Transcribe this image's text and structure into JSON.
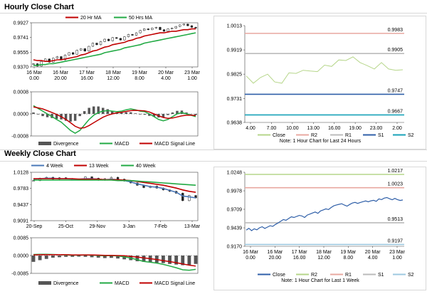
{
  "page": {
    "hourly_title": "Hourly Close Chart",
    "weekly_title": "Weekly Close Chart"
  },
  "chart_data": [
    {
      "id": "hourly_price",
      "type": "line",
      "subtype": "candlestick-with-moving-averages",
      "legend": [
        "20 Hr MA",
        "50 Hrs MA"
      ],
      "legend_colors": [
        "#c00000",
        "#22aa44"
      ],
      "ylim": [
        0.937,
        0.9927
      ],
      "yticks": [
        0.9927,
        0.9741,
        0.9555,
        0.937
      ],
      "ytick_labels": [
        "0.9927",
        "0.9741",
        "0.9555",
        "0.9370"
      ],
      "xtick_labels": [
        [
          "16 Mar",
          "0.00"
        ],
        [
          "16 Mar",
          "20.00"
        ],
        [
          "17 Mar",
          "16.00"
        ],
        [
          "18 Mar",
          "12.00"
        ],
        [
          "19 Mar",
          "8.00"
        ],
        [
          "20 Mar",
          "4.00"
        ],
        [
          "23 Mar",
          "1.00"
        ]
      ],
      "close": [
        0.941,
        0.938,
        0.944,
        0.947,
        0.943,
        0.948,
        0.95,
        0.946,
        0.952,
        0.955,
        0.953,
        0.958,
        0.96,
        0.957,
        0.963,
        0.967,
        0.965,
        0.969,
        0.972,
        0.97,
        0.974,
        0.973,
        0.971,
        0.975,
        0.978,
        0.977,
        0.98,
        0.983,
        0.985,
        0.984,
        0.986,
        0.987,
        0.984,
        0.982,
        0.985,
        0.986,
        0.988,
        0.99,
        0.991,
        0.989,
        0.987,
        0.986
      ],
      "ma20": [
        0.946,
        0.945,
        0.945,
        0.944,
        0.944,
        0.945,
        0.946,
        0.946,
        0.947,
        0.948,
        0.949,
        0.95,
        0.952,
        0.953,
        0.955,
        0.957,
        0.958,
        0.96,
        0.962,
        0.963,
        0.965,
        0.966,
        0.967,
        0.968,
        0.97,
        0.971,
        0.973,
        0.974,
        0.976,
        0.977,
        0.978,
        0.979,
        0.98,
        0.98,
        0.981,
        0.982,
        0.982,
        0.983,
        0.984,
        0.984,
        0.985,
        0.985
      ],
      "ma50": [
        0.939,
        0.939,
        0.94,
        0.94,
        0.941,
        0.941,
        0.942,
        0.943,
        0.944,
        0.945,
        0.946,
        0.947,
        0.948,
        0.949,
        0.95,
        0.951,
        0.952,
        0.953,
        0.955,
        0.956,
        0.957,
        0.958,
        0.959,
        0.961,
        0.962,
        0.963,
        0.964,
        0.965,
        0.967,
        0.968,
        0.969,
        0.97,
        0.971,
        0.972,
        0.973,
        0.974,
        0.975,
        0.976,
        0.977,
        0.978,
        0.979,
        0.98
      ]
    },
    {
      "id": "hourly_macd",
      "type": "bar",
      "subtype": "macd",
      "legend": [
        "Divergence",
        "MACD",
        "MACD Signal Line"
      ],
      "legend_colors": [
        "#555555",
        "#22aa44",
        "#c00000"
      ],
      "ylim": [
        -0.0008,
        0.0008
      ],
      "yticks": [
        0.0008,
        0.0,
        -0.0008
      ],
      "ytick_labels": [
        "0.0008",
        "0.0000",
        "-0.0008"
      ],
      "macd": [
        0.0003,
        0.0002,
        0.0001,
        0.0,
        -0.0001,
        -0.0002,
        -0.0003,
        -0.00045,
        -0.0006,
        -0.0007,
        -0.0006,
        -0.0004,
        -0.0002,
        -5e-05,
        5e-05,
        0.0001,
        0.00012,
        0.0001,
        8e-05,
        0.0001,
        0.00015,
        0.00018,
        0.00015,
        0.0001,
        8e-05,
        0.0,
        -0.0001,
        -0.0002,
        -0.00025,
        -0.0002,
        -0.0001,
        0.0,
        5e-05,
        0.0,
        -5e-05,
        -0.0001
      ],
      "signal": [
        0.00025,
        0.00022,
        0.00018,
        0.00012,
        5e-05,
        -2e-05,
        -0.0001,
        -0.0002,
        -0.00032,
        -0.00045,
        -0.00052,
        -0.0005,
        -0.00042,
        -0.00032,
        -0.00022,
        -0.00012,
        -5e-05,
        0.0,
        4e-05,
        6e-05,
        9e-05,
        0.00012,
        0.00013,
        0.00012,
        0.00011,
        7e-05,
        0.0,
        -7e-05,
        -0.00013,
        -0.00016,
        -0.00015,
        -0.00011,
        -7e-05,
        -5e-05,
        -5e-05,
        -6e-05
      ],
      "divergence": [
        5e-05,
        -2e-05,
        -8e-05,
        -0.00012,
        -0.00015,
        -0.00018,
        -0.0002,
        -0.00025,
        -0.00028,
        -0.00025,
        -8e-05,
        0.0001,
        0.00022,
        0.00027,
        0.00027,
        0.00022,
        0.00017,
        0.0001,
        4e-05,
        4e-05,
        6e-05,
        6e-05,
        2e-05,
        -2e-05,
        -3e-05,
        -7e-05,
        -0.0001,
        -0.00013,
        -0.00012,
        -4e-05,
        5e-05,
        0.00011,
        0.00012,
        5e-05,
        0.0,
        -4e-05
      ]
    },
    {
      "id": "hourly_sr",
      "type": "line",
      "subtype": "support-resistance",
      "ylim": [
        0.9638,
        1.0013
      ],
      "yticks": [
        1.0013,
        0.9919,
        0.9825,
        0.9731,
        0.9638
      ],
      "ytick_labels": [
        "1.0013",
        "0.9919",
        "0.9825",
        "0.9731",
        "0.9638"
      ],
      "xtick_labels": [
        "4.00",
        "7.00",
        "10.00",
        "13.00",
        "16.00",
        "19.00",
        "23.00",
        "2.00"
      ],
      "levels": [
        {
          "name": "R2",
          "value": 0.9983,
          "label": "0.9983",
          "color": "#e8a8a0"
        },
        {
          "name": "R1",
          "value": 0.9905,
          "label": "0.9905",
          "color": "#bbbbbb"
        },
        {
          "name": "S1",
          "value": 0.9747,
          "label": "0.9747",
          "color": "#2f5fa8"
        },
        {
          "name": "S2",
          "value": 0.9667,
          "label": "0.9667",
          "color": "#17a2b8"
        }
      ],
      "close": [
        0.9818,
        0.979,
        0.9812,
        0.9825,
        0.9795,
        0.979,
        0.983,
        0.9828,
        0.984,
        0.9837,
        0.9835,
        0.986,
        0.9855,
        0.988,
        0.9878,
        0.9892,
        0.987,
        0.9858,
        0.9845,
        0.987,
        0.9845,
        0.984,
        0.9842
      ],
      "legend": [
        "Close",
        "R2",
        "R1",
        "S1",
        "S2"
      ],
      "legend_colors": [
        "#b6d68a",
        "#e8a8a0",
        "#bbbbbb",
        "#2f5fa8",
        "#17a2b8"
      ],
      "note": "Note: 1 Hour Chart for Last 24 Hours"
    },
    {
      "id": "weekly_price",
      "type": "line",
      "subtype": "candlestick-with-moving-averages",
      "legend": [
        "4 Week",
        "13 Week",
        "40 Week"
      ],
      "legend_colors": [
        "#4a78b8",
        "#c00000",
        "#22aa44"
      ],
      "ylim": [
        0.9091,
        1.0128
      ],
      "yticks": [
        1.0128,
        0.9783,
        0.9437,
        0.9091
      ],
      "ytick_labels": [
        "1.0128",
        "0.9783",
        "0.9437",
        "0.9091"
      ],
      "xtick_labels": [
        "20-Sep",
        "25-Oct",
        "29-Nov",
        "3-Jan",
        "7-Feb",
        "13-Mar"
      ],
      "close": [
        0.995,
        1.0,
        1.002,
        0.998,
        1.001,
        0.999,
        0.997,
        0.998,
        1.003,
        1.0,
        0.996,
        0.999,
        1.002,
        0.998,
        0.994,
        0.99,
        0.985,
        0.98,
        0.983,
        0.979,
        0.975,
        0.972,
        0.968,
        0.952,
        0.963,
        0.958
      ],
      "ma4": [
        0.998,
        0.999,
        1.0,
        1.0,
        0.999,
        0.999,
        0.998,
        0.998,
        0.999,
        0.999,
        0.998,
        0.997,
        0.998,
        0.997,
        0.995,
        0.992,
        0.988,
        0.985,
        0.982,
        0.981,
        0.978,
        0.974,
        0.97,
        0.962,
        0.96,
        0.958
      ],
      "ma13": [
        0.999,
        0.999,
        0.999,
        0.999,
        0.999,
        0.999,
        0.999,
        0.998,
        0.998,
        0.998,
        0.998,
        0.997,
        0.997,
        0.997,
        0.996,
        0.995,
        0.993,
        0.991,
        0.989,
        0.987,
        0.985,
        0.982,
        0.979,
        0.975,
        0.972,
        0.97
      ],
      "ma40": [
        0.996,
        0.996,
        0.996,
        0.996,
        0.996,
        0.996,
        0.996,
        0.996,
        0.996,
        0.996,
        0.996,
        0.996,
        0.996,
        0.995,
        0.995,
        0.995,
        0.994,
        0.993,
        0.992,
        0.991,
        0.99,
        0.989,
        0.988,
        0.987,
        0.986,
        0.985
      ]
    },
    {
      "id": "weekly_macd",
      "type": "bar",
      "subtype": "macd",
      "legend": [
        "Divergence",
        "MACD",
        "MACD Signal Line"
      ],
      "legend_colors": [
        "#555555",
        "#22aa44",
        "#c00000"
      ],
      "ylim": [
        -0.0085,
        0.0085
      ],
      "yticks": [
        0.0085,
        0.0,
        -0.0085
      ],
      "ytick_labels": [
        "0.0085",
        "0.0000",
        "-0.0085"
      ],
      "macd": [
        0.0005,
        0.0006,
        0.0006,
        0.0005,
        0.0004,
        0.0003,
        0.0002,
        0.0002,
        0.0003,
        0.0002,
        0.0,
        -0.0001,
        0.0,
        -0.0002,
        -0.0006,
        -0.0012,
        -0.002,
        -0.0028,
        -0.0032,
        -0.0036,
        -0.0042,
        -0.005,
        -0.0058,
        -0.0068,
        -0.007,
        -0.0066
      ],
      "signal": [
        0.0003,
        0.0004,
        0.0004,
        0.0004,
        0.0004,
        0.0004,
        0.0003,
        0.0003,
        0.0003,
        0.0003,
        0.0002,
        0.0001,
        0.0001,
        0.0,
        -0.0001,
        -0.0004,
        -0.0007,
        -0.0011,
        -0.0015,
        -0.0019,
        -0.0024,
        -0.0029,
        -0.0034,
        -0.004,
        -0.0046,
        -0.005
      ],
      "divergence": [
        -0.003,
        -0.0022,
        -0.0016,
        -0.001,
        -0.0008,
        -0.0006,
        -0.0006,
        -0.0005,
        -0.0006,
        -0.0008,
        -0.001,
        -0.0012,
        -0.0011,
        -0.0014,
        -0.0018,
        -0.0022,
        -0.0027,
        -0.003,
        -0.0032,
        -0.0034,
        -0.0036,
        -0.004,
        -0.0043,
        -0.0046,
        -0.0044,
        -0.004
      ]
    },
    {
      "id": "weekly_sr",
      "type": "line",
      "subtype": "support-resistance",
      "ylim": [
        0.917,
        1.0248
      ],
      "yticks": [
        1.0248,
        0.9978,
        0.9709,
        0.9439,
        0.917
      ],
      "ytick_labels": [
        "1.0248",
        "0.9978",
        "0.9709",
        "0.9439",
        "0.9170"
      ],
      "xtick_labels": [
        [
          "16 Mar",
          "0.00"
        ],
        [
          "16 Mar",
          "20.00"
        ],
        [
          "17 Mar",
          "16.00"
        ],
        [
          "18 Mar",
          "12.00"
        ],
        [
          "19 Mar",
          "8.00"
        ],
        [
          "20 Mar",
          "4.00"
        ],
        [
          "23 Mar",
          "1.00"
        ]
      ],
      "levels": [
        {
          "name": "R2",
          "value": 1.0217,
          "label": "1.0217",
          "color": "#b6d68a"
        },
        {
          "name": "R1",
          "value": 1.0023,
          "label": "1.0023",
          "color": "#e8a8a0"
        },
        {
          "name": "S1",
          "value": 0.9513,
          "label": "0.9513",
          "color": "#bbbbbb"
        },
        {
          "name": "S2",
          "value": 0.9197,
          "label": "0.9197",
          "color": "#9ec9e0"
        }
      ],
      "close": [
        0.9405,
        0.9432,
        0.9398,
        0.9425,
        0.941,
        0.944,
        0.9455,
        0.943,
        0.945,
        0.947,
        0.946,
        0.9488,
        0.951,
        0.9535,
        0.956,
        0.9548,
        0.9575,
        0.96,
        0.959,
        0.9605,
        0.962,
        0.9612,
        0.959,
        0.9625,
        0.964,
        0.9655,
        0.967,
        0.965,
        0.9685,
        0.97,
        0.9715,
        0.9705,
        0.9735,
        0.976,
        0.9772,
        0.9782,
        0.979,
        0.977,
        0.9755,
        0.978,
        0.98,
        0.981,
        0.9795,
        0.9808,
        0.982,
        0.983,
        0.9818,
        0.9832,
        0.984,
        0.9825,
        0.986,
        0.985,
        0.9872,
        0.988,
        0.9862,
        0.9848,
        0.9868,
        0.985,
        0.9838,
        0.9845
      ],
      "legend": [
        "Close",
        "R2",
        "R1",
        "S1",
        "S2"
      ],
      "legend_colors": [
        "#2f5fa8",
        "#b6d68a",
        "#e8a8a0",
        "#bbbbbb",
        "#9ec9e0"
      ],
      "note": "Note: 1 Hour Chart for Last 1 Week"
    }
  ]
}
